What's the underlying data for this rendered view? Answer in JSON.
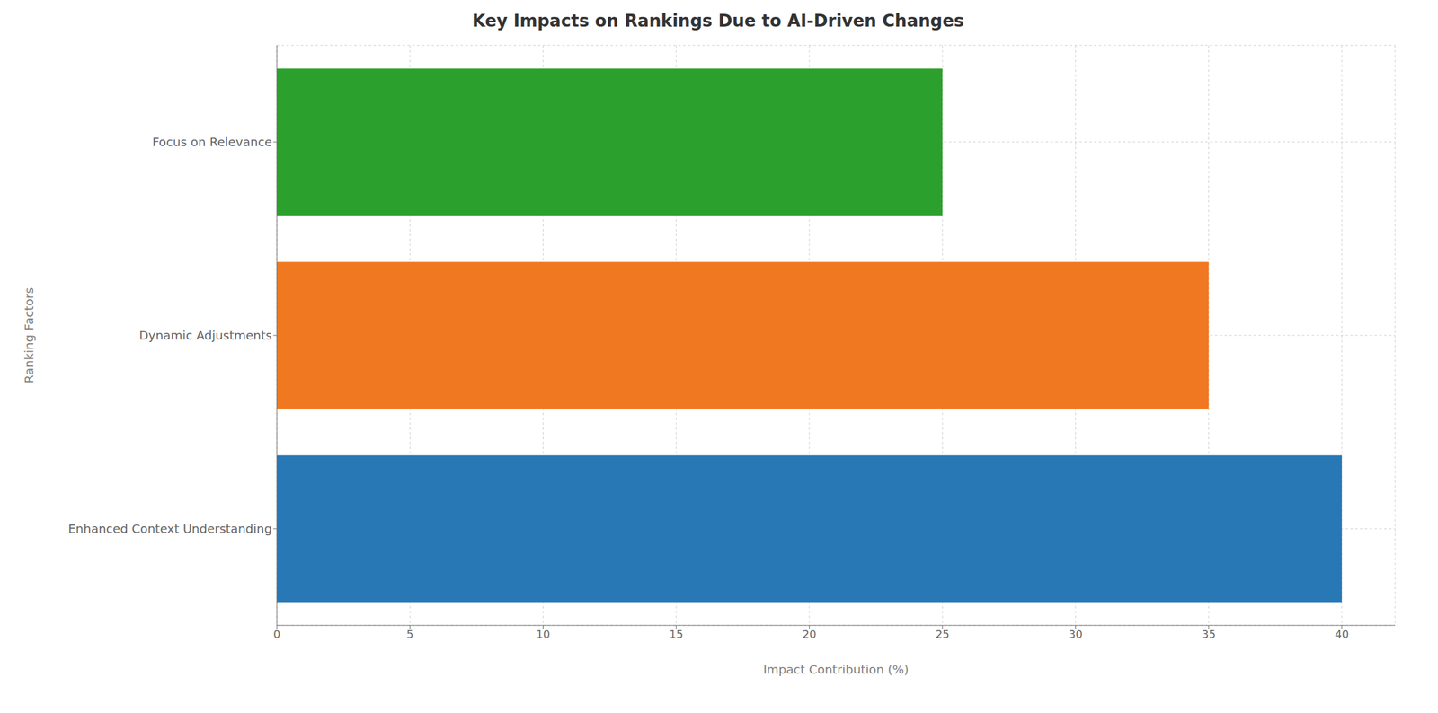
{
  "chart_data": {
    "type": "bar",
    "orientation": "horizontal",
    "title": "Key Impacts on Rankings Due to AI-Driven Changes",
    "categories": [
      "Enhanced Context Understanding",
      "Dynamic Adjustments",
      "Focus on Relevance"
    ],
    "values": [
      40,
      35,
      25
    ],
    "colors": [
      "#2878b5",
      "#f07820",
      "#2ca02c"
    ],
    "xlabel": "Impact Contribution (%)",
    "ylabel": "Ranking Factors",
    "xlim": [
      0,
      42
    ],
    "xticks": [
      0,
      5,
      10,
      15,
      20,
      25,
      30,
      35,
      40
    ],
    "grid": true
  }
}
